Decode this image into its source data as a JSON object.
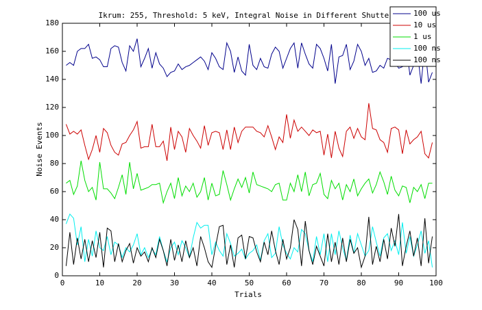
{
  "chart_data": {
    "type": "line",
    "title": "Ikrum: 255, Threshold: 5 keV, Integral Noise in Different Shutters",
    "x_label": "Trials",
    "y_label": "Noise Events",
    "x": [
      1,
      2,
      3,
      4,
      5,
      6,
      7,
      8,
      9,
      10,
      11,
      12,
      13,
      14,
      15,
      16,
      17,
      18,
      19,
      20,
      21,
      22,
      23,
      24,
      25,
      26,
      27,
      28,
      29,
      30,
      31,
      32,
      33,
      34,
      35,
      36,
      37,
      38,
      39,
      40,
      41,
      42,
      43,
      44,
      45,
      46,
      47,
      48,
      49,
      50,
      51,
      52,
      53,
      54,
      55,
      56,
      57,
      58,
      59,
      60,
      61,
      62,
      63,
      64,
      65,
      66,
      67,
      68,
      69,
      70,
      71,
      72,
      73,
      74,
      75,
      76,
      77,
      78,
      79,
      80,
      81,
      82,
      83,
      84,
      85,
      86,
      87,
      88,
      89,
      90,
      91,
      92,
      93,
      94,
      95,
      96,
      97,
      98,
      99
    ],
    "series": [
      {
        "name": "100 us",
        "color": "#00008b",
        "values": [
          150,
          152,
          150,
          160,
          162,
          162,
          165,
          155,
          156,
          154,
          149,
          149,
          162,
          164,
          163,
          152,
          146,
          164,
          160,
          169,
          149,
          155,
          162,
          148,
          159,
          151,
          148,
          142,
          145,
          146,
          151,
          147,
          149,
          150,
          152,
          154,
          156,
          153,
          147,
          159,
          155,
          149,
          147,
          166,
          160,
          145,
          156,
          146,
          143,
          165,
          150,
          147,
          155,
          149,
          148,
          158,
          163,
          160,
          148,
          155,
          162,
          166,
          148,
          166,
          158,
          151,
          148,
          165,
          162,
          155,
          146,
          165,
          137,
          156,
          157,
          165,
          147,
          153,
          165,
          160,
          150,
          155,
          145,
          146,
          150,
          148,
          155,
          154,
          152,
          148,
          149,
          165,
          143,
          150,
          160,
          137,
          164,
          138,
          145
        ]
      },
      {
        "name": "10 us",
        "color": "#cc0000",
        "values": [
          108,
          101,
          103,
          101,
          104,
          93,
          83,
          90,
          100,
          88,
          105,
          102,
          93,
          88,
          86,
          94,
          95,
          100,
          104,
          110,
          91,
          92,
          92,
          108,
          92,
          92,
          96,
          82,
          106,
          90,
          103,
          99,
          88,
          105,
          100,
          96,
          91,
          107,
          93,
          102,
          103,
          102,
          90,
          104,
          90,
          106,
          95,
          103,
          106,
          106,
          106,
          103,
          102,
          99,
          107,
          99,
          90,
          99,
          95,
          115,
          98,
          111,
          103,
          106,
          103,
          100,
          104,
          102,
          103,
          86,
          101,
          84,
          103,
          91,
          85,
          103,
          106,
          98,
          105,
          99,
          97,
          123,
          105,
          104,
          97,
          95,
          88,
          105,
          106,
          104,
          87,
          104,
          94,
          97,
          99,
          103,
          87,
          84,
          95
        ]
      },
      {
        "name": "1 us",
        "color": "#00dd00",
        "values": [
          66,
          68,
          58,
          64,
          82,
          68,
          60,
          63,
          54,
          81,
          62,
          62,
          59,
          55,
          63,
          72,
          58,
          81,
          62,
          73,
          61,
          62,
          63,
          65,
          65,
          66,
          52,
          60,
          66,
          55,
          70,
          57,
          64,
          60,
          66,
          56,
          60,
          70,
          54,
          66,
          57,
          58,
          75,
          65,
          54,
          62,
          69,
          63,
          70,
          59,
          74,
          65,
          64,
          63,
          62,
          60,
          65,
          66,
          54,
          54,
          66,
          60,
          72,
          60,
          74,
          57,
          65,
          66,
          73,
          58,
          55,
          68,
          62,
          66,
          54,
          65,
          60,
          69,
          57,
          62,
          66,
          69,
          59,
          65,
          74,
          67,
          58,
          71,
          61,
          57,
          64,
          63,
          52,
          63,
          60,
          65,
          55,
          66,
          66
        ]
      },
      {
        "name": "100 ns",
        "color": "#00eeee",
        "values": [
          37,
          44,
          41,
          22,
          35,
          10,
          26,
          14,
          32,
          20,
          18,
          28,
          15,
          24,
          22,
          13,
          20,
          17,
          22,
          30,
          15,
          20,
          13,
          19,
          15,
          28,
          18,
          10,
          20,
          24,
          15,
          25,
          20,
          13,
          27,
          38,
          34,
          36,
          36,
          15,
          24,
          18,
          14,
          30,
          23,
          14,
          16,
          19,
          12,
          16,
          18,
          22,
          11,
          25,
          30,
          13,
          16,
          35,
          22,
          16,
          12,
          20,
          17,
          33,
          30,
          18,
          10,
          28,
          15,
          30,
          10,
          30,
          15,
          32,
          20,
          11,
          29,
          16,
          30,
          22,
          14,
          18,
          35,
          24,
          14,
          27,
          30,
          18,
          25,
          15,
          38,
          16,
          28,
          14,
          22,
          32,
          16,
          25,
          6
        ]
      },
      {
        "name": "100 ns",
        "color": "#000000",
        "values": [
          7,
          31,
          8,
          27,
          12,
          26,
          10,
          25,
          13,
          31,
          6,
          34,
          32,
          10,
          23,
          10,
          18,
          23,
          9,
          20,
          14,
          17,
          10,
          20,
          13,
          26,
          18,
          7,
          26,
          11,
          22,
          10,
          25,
          13,
          20,
          7,
          28,
          20,
          10,
          6,
          21,
          35,
          36,
          8,
          22,
          6,
          27,
          29,
          12,
          28,
          27,
          17,
          10,
          24,
          15,
          32,
          18,
          8,
          26,
          12,
          20,
          40,
          33,
          7,
          39,
          18,
          8,
          21,
          14,
          7,
          30,
          10,
          24,
          8,
          27,
          10,
          26,
          16,
          20,
          6,
          14,
          42,
          8,
          21,
          10,
          26,
          12,
          34,
          21,
          44,
          7,
          21,
          32,
          14,
          27,
          7,
          41,
          9,
          28
        ]
      }
    ],
    "xlim": [
      0,
      100
    ],
    "xticks": [
      0,
      10,
      20,
      30,
      40,
      50,
      60,
      70,
      80,
      90,
      100
    ],
    "ylim": [
      0,
      180
    ],
    "yticks": [
      0,
      20,
      40,
      60,
      80,
      100,
      120,
      140,
      160,
      180
    ],
    "legend": "upper right"
  }
}
